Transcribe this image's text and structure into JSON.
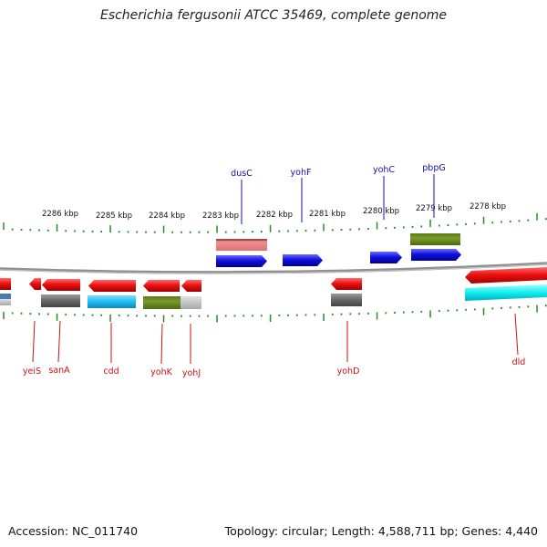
{
  "title": "Escherichia fergusonii ATCC 35469, complete genome",
  "accession": "Accession: NC_011740",
  "topology": "Topology: circular; Length: 4,588,711 bp; Genes: 4,440",
  "ticks": [
    "2286 kbp",
    "2285 kbp",
    "2284 kbp",
    "2283 kbp",
    "2282 kbp",
    "2281 kbp",
    "2280 kbp",
    "2279 kbp",
    "2278 kbp"
  ],
  "genes_top": [
    {
      "name": "dusC",
      "color": "blue"
    },
    {
      "name": "yohF",
      "color": "blue"
    },
    {
      "name": "yohC",
      "color": "blue"
    },
    {
      "name": "pbpG",
      "color": "blue"
    }
  ],
  "genes_bottom": [
    {
      "name": "yeiS",
      "color": "red"
    },
    {
      "name": "sanA",
      "color": "red"
    },
    {
      "name": "cdd",
      "color": "red"
    },
    {
      "name": "yohK",
      "color": "red"
    },
    {
      "name": "yohJ",
      "color": "red"
    },
    {
      "name": "yohD",
      "color": "red"
    },
    {
      "name": "dld",
      "color": "red"
    }
  ],
  "colors": {
    "backbone": "#8a8a8a",
    "tick": "#2a8a2a",
    "forward_cds": "#1010e0",
    "reverse_cds": "#ee1111",
    "gray": "#707070",
    "pink": "#e88080",
    "olive": "#6b8e23",
    "cyan": "#22bbee",
    "label_blue": "#1010b0",
    "label_red": "#cc1111"
  }
}
